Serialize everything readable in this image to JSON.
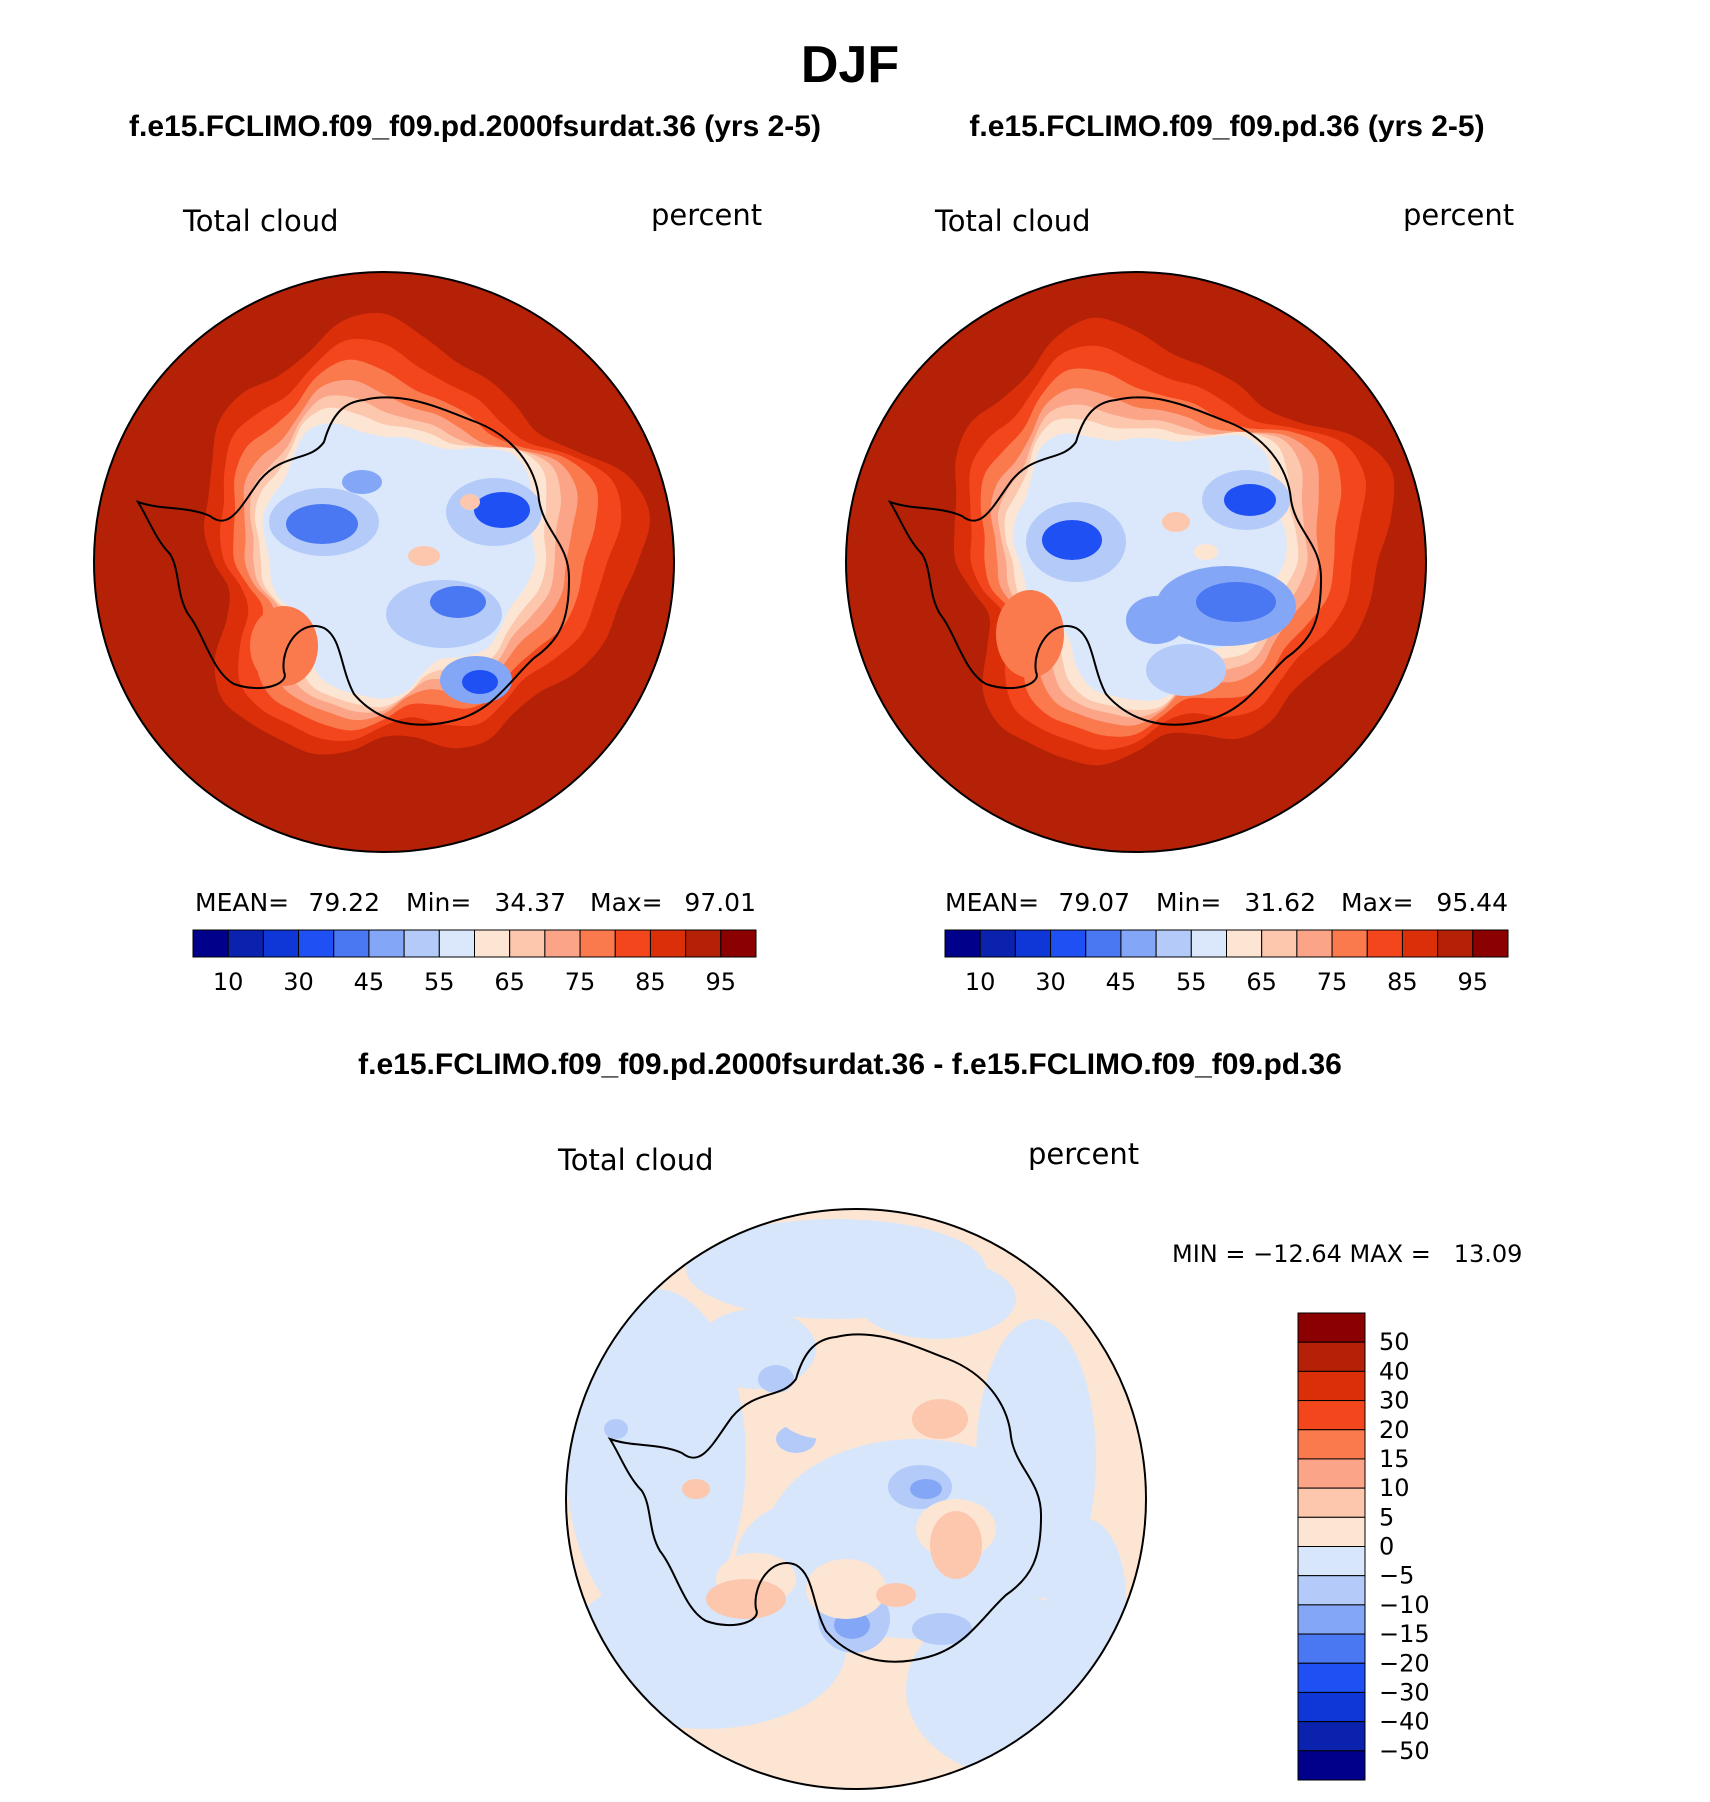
{
  "season": "DJF",
  "panels": [
    {
      "case_title": "f.e15.FCLIMO.f09_f09.pd.2000fsurdat.36 (yrs 2-5)",
      "variable": "Total cloud",
      "units": "percent",
      "mean_label": "MEAN=",
      "mean": "79.22",
      "min_label": "Min=",
      "min": "34.37",
      "max_label": "Max=",
      "max": "97.01"
    },
    {
      "case_title": "f.e15.FCLIMO.f09_f09.pd.36 (yrs 2-5)",
      "variable": "Total cloud",
      "units": "percent",
      "mean_label": "MEAN=",
      "mean": "79.07",
      "min_label": "Min=",
      "min": "31.62",
      "max_label": "Max=",
      "max": "95.44"
    }
  ],
  "diff_panel": {
    "title": "f.e15.FCLIMO.f09_f09.pd.2000fsurdat.36 - f.e15.FCLIMO.f09_f09.pd.36",
    "variable": "Total cloud",
    "units": "percent",
    "minmax_text": "MIN = −12.64 MAX =   13.09"
  },
  "abs_colorbar": {
    "colors": [
      "#00008b",
      "#0a22ad",
      "#0f37d8",
      "#1f50f3",
      "#4a77f2",
      "#84a6f7",
      "#b4cbfa",
      "#dbe8fb",
      "#fde5d3",
      "#fcc7ad",
      "#fca487",
      "#fa7a4e",
      "#f4461d",
      "#db2f0a",
      "#b52107",
      "#8b0000"
    ],
    "labels": [
      "10",
      "30",
      "45",
      "55",
      "65",
      "75",
      "85",
      "95"
    ]
  },
  "diff_colorbar": {
    "colors": [
      "#8b0000",
      "#b52107",
      "#db2f0a",
      "#f4461d",
      "#fa7a4e",
      "#fca487",
      "#fcc7ad",
      "#fde5d3",
      "#d7e6fb",
      "#b4cbfa",
      "#84a6f7",
      "#4a77f2",
      "#1f50f3",
      "#0f37d8",
      "#0a22ad",
      "#00008b"
    ],
    "labels": [
      "50",
      "40",
      "30",
      "20",
      "15",
      "10",
      "5",
      "0",
      "−5",
      "−10",
      "−15",
      "−20",
      "−30",
      "−40",
      "−50"
    ]
  },
  "map_colors": {
    "ocean_far": "#b52107",
    "ring1": "#db2f0a",
    "ring2": "#f4461d",
    "ring3": "#fa7a4e",
    "ring4": "#fca487",
    "ring5": "#fcc7ad",
    "ring6": "#fde5d3",
    "ice": "#dbe8fb",
    "ice2": "#b4cbfa",
    "ice3": "#84a6f7",
    "ice4": "#4a77f2",
    "ice5": "#1f50f3",
    "diff_pos": "#fde5d3",
    "diff_neg": "#d7e6fb",
    "diff_pos2": "#fcc7ad",
    "diff_neg2": "#b4cbfa",
    "diff_neg3": "#84a6f7"
  }
}
